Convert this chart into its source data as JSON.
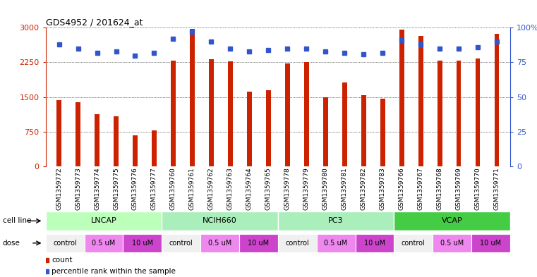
{
  "title": "GDS4952 / 201624_at",
  "samples": [
    "GSM1359772",
    "GSM1359773",
    "GSM1359774",
    "GSM1359775",
    "GSM1359776",
    "GSM1359777",
    "GSM1359760",
    "GSM1359761",
    "GSM1359762",
    "GSM1359763",
    "GSM1359764",
    "GSM1359765",
    "GSM1359778",
    "GSM1359779",
    "GSM1359780",
    "GSM1359781",
    "GSM1359782",
    "GSM1359783",
    "GSM1359766",
    "GSM1359767",
    "GSM1359768",
    "GSM1359769",
    "GSM1359770",
    "GSM1359771"
  ],
  "bar_values": [
    1430,
    1390,
    1120,
    1080,
    670,
    780,
    2280,
    2980,
    2310,
    2270,
    1620,
    1640,
    2220,
    2260,
    1500,
    1820,
    1540,
    1470,
    2960,
    2820,
    2280,
    2280,
    2330,
    2870
  ],
  "dot_values": [
    88,
    85,
    82,
    83,
    80,
    82,
    92,
    97,
    90,
    85,
    83,
    84,
    85,
    85,
    83,
    82,
    81,
    82,
    91,
    88,
    85,
    85,
    86,
    90
  ],
  "bar_color": "#cc2200",
  "dot_color": "#3355cc",
  "ylim_left": [
    0,
    3000
  ],
  "ylim_right": [
    0,
    100
  ],
  "yticks_left": [
    0,
    750,
    1500,
    2250,
    3000
  ],
  "yticks_right": [
    0,
    25,
    50,
    75,
    100
  ],
  "cell_lines": [
    "LNCAP",
    "NCIH660",
    "PC3",
    "VCAP"
  ],
  "cell_line_spans": [
    [
      0,
      6
    ],
    [
      6,
      12
    ],
    [
      12,
      18
    ],
    [
      18,
      24
    ]
  ],
  "cell_line_colors": [
    "#bbffbb",
    "#aaeebb",
    "#aaeebb",
    "#44cc44"
  ],
  "dose_groups": [
    [
      0,
      2,
      "control",
      "#f0f0f0"
    ],
    [
      2,
      4,
      "0.5 uM",
      "#ee88ee"
    ],
    [
      4,
      6,
      "10 uM",
      "#cc44cc"
    ],
    [
      6,
      8,
      "control",
      "#f0f0f0"
    ],
    [
      8,
      10,
      "0.5 uM",
      "#ee88ee"
    ],
    [
      10,
      12,
      "10 uM",
      "#cc44cc"
    ],
    [
      12,
      14,
      "control",
      "#f0f0f0"
    ],
    [
      14,
      16,
      "0.5 uM",
      "#ee88ee"
    ],
    [
      16,
      18,
      "10 uM",
      "#cc44cc"
    ],
    [
      18,
      20,
      "control",
      "#f0f0f0"
    ],
    [
      20,
      22,
      "0.5 uM",
      "#ee88ee"
    ],
    [
      22,
      24,
      "10 uM",
      "#cc44cc"
    ]
  ],
  "legend_count_color": "#cc2200",
  "legend_dot_color": "#3355cc",
  "background_color": "#ffffff",
  "sample_bg_color": "#d8d8d8",
  "bar_width": 0.25
}
